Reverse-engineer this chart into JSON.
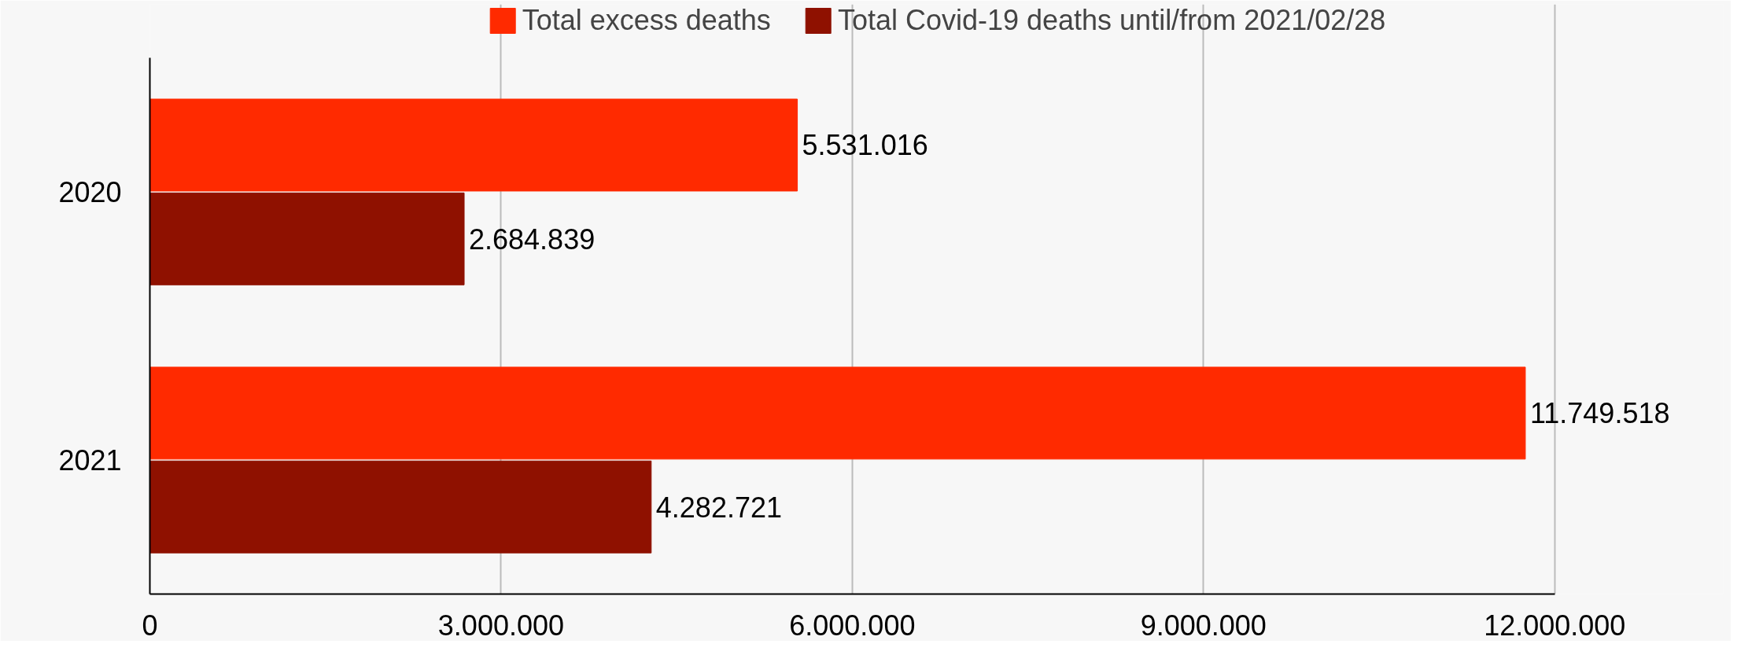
{
  "chart_data": {
    "type": "bar",
    "orientation": "horizontal",
    "categories": [
      "2020",
      "2021"
    ],
    "series": [
      {
        "name": "Total excess deaths",
        "color": "#ff2a00",
        "values": [
          5531016,
          11749518
        ],
        "value_labels": [
          "5.531.016",
          "11.749.518"
        ]
      },
      {
        "name": "Total Covid-19 deaths until/from 2021/02/28",
        "color": "#8f1100",
        "values": [
          2684839,
          4282721
        ],
        "value_labels": [
          "2.684.839",
          "4.282.721"
        ]
      }
    ],
    "xlim": [
      0,
      12000000
    ],
    "xticks": [
      0,
      {
        "value": 3000000,
        "label": "3.000.000"
      },
      {
        "value": 6000000,
        "label": "6.000.000"
      },
      {
        "value": 9000000,
        "label": "9.000.000"
      },
      {
        "value": 12000000,
        "label": "12.000.000"
      }
    ],
    "grid": "x",
    "legend": "top"
  }
}
